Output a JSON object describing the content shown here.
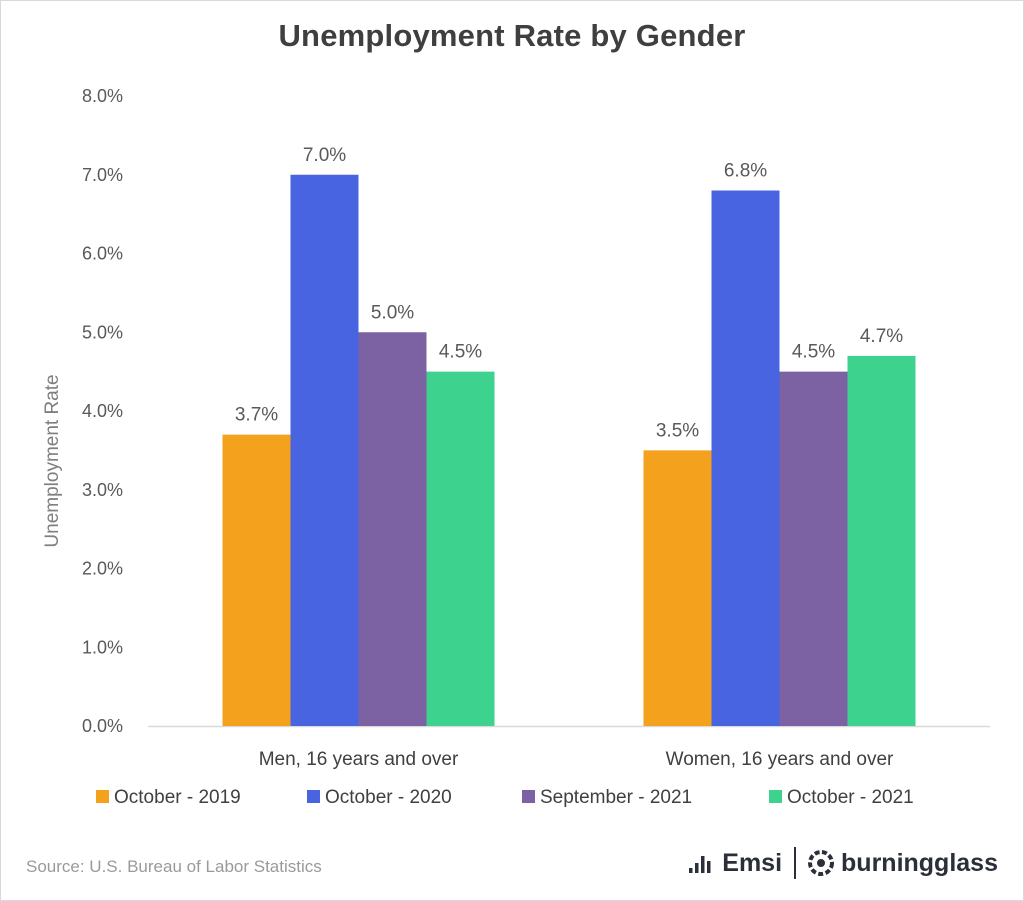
{
  "chart_data": {
    "type": "bar",
    "title": "Unemployment Rate by Gender",
    "ylabel": "Unemployment  Rate",
    "xlabel": "",
    "categories": [
      "Men, 16 years and over",
      "Women, 16 years and over"
    ],
    "series": [
      {
        "name": "October - 2019",
        "color": "#F4A11E",
        "values": [
          3.7,
          3.5
        ],
        "labels": [
          "3.7%",
          "3.5%"
        ]
      },
      {
        "name": "October - 2020",
        "color": "#4864E1",
        "values": [
          7.0,
          6.8
        ],
        "labels": [
          "7.0%",
          "6.8%"
        ]
      },
      {
        "name": "September - 2021",
        "color": "#7C62A3",
        "values": [
          5.0,
          4.5
        ],
        "labels": [
          "5.0%",
          "4.5%"
        ]
      },
      {
        "name": "October - 2021",
        "color": "#3ED28F",
        "values": [
          4.5,
          4.7
        ],
        "labels": [
          "4.5%",
          "4.7%"
        ]
      }
    ],
    "ylim": [
      0,
      8
    ],
    "yticks": [
      "0.0%",
      "1.0%",
      "2.0%",
      "3.0%",
      "4.0%",
      "5.0%",
      "6.0%",
      "7.0%",
      "8.0%"
    ],
    "grid": false,
    "legend_position": "bottom"
  },
  "footer": {
    "source": "Source:  U.S. Bureau of Labor Statistics",
    "logo_emsi": "Emsi",
    "logo_burningglass": "burningglass"
  }
}
